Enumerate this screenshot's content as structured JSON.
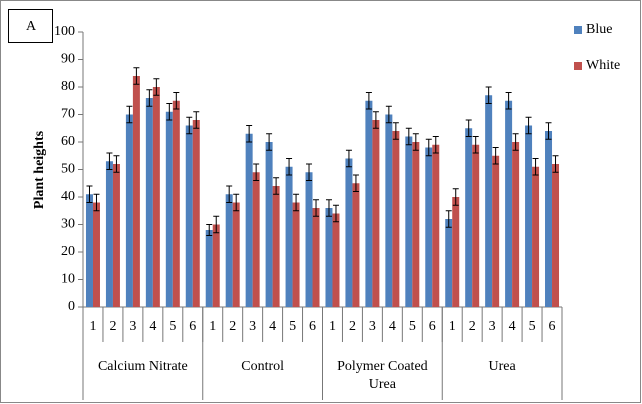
{
  "chart_data": {
    "type": "grouped-bar-error",
    "panel_label": "A",
    "y_label": "Plant heights",
    "groups": [
      {
        "name": "Calcium Nitrate",
        "categories": [
          "1",
          "2",
          "3",
          "4",
          "5",
          "6"
        ]
      },
      {
        "name": "Control",
        "categories": [
          "1",
          "2",
          "3",
          "4",
          "5",
          "6"
        ]
      },
      {
        "name": "Polymer Coated Urea",
        "categories": [
          "1",
          "2",
          "3",
          "4",
          "5",
          "6"
        ]
      },
      {
        "name": "Urea",
        "categories": [
          "1",
          "2",
          "3",
          "4",
          "5",
          "6"
        ]
      }
    ],
    "series": [
      {
        "name": "Blue",
        "color": "#4f81bd",
        "values": [
          41,
          53,
          70,
          76,
          71,
          66,
          28,
          41,
          63,
          60,
          51,
          49,
          36,
          54,
          75,
          70,
          62,
          58,
          32,
          65,
          77,
          75,
          66,
          64
        ],
        "errors": [
          3,
          3,
          3,
          3,
          3,
          3,
          2,
          3,
          3,
          3,
          3,
          3,
          3,
          3,
          3,
          3,
          3,
          3,
          3,
          3,
          3,
          3,
          3,
          3
        ]
      },
      {
        "name": "White",
        "color": "#c0504d",
        "values": [
          38,
          52,
          84,
          80,
          75,
          68,
          30,
          38,
          49,
          44,
          38,
          36,
          34,
          45,
          68,
          64,
          60,
          59,
          40,
          59,
          55,
          60,
          51,
          52
        ],
        "errors": [
          3,
          3,
          3,
          3,
          3,
          3,
          3,
          3,
          3,
          3,
          3,
          3,
          3,
          3,
          3,
          3,
          3,
          3,
          3,
          3,
          3,
          3,
          3,
          3
        ]
      }
    ],
    "ylim": [
      0,
      100
    ],
    "yticks": [
      0,
      10,
      20,
      30,
      40,
      50,
      60,
      70,
      80,
      90,
      100
    ],
    "legend": "right"
  }
}
